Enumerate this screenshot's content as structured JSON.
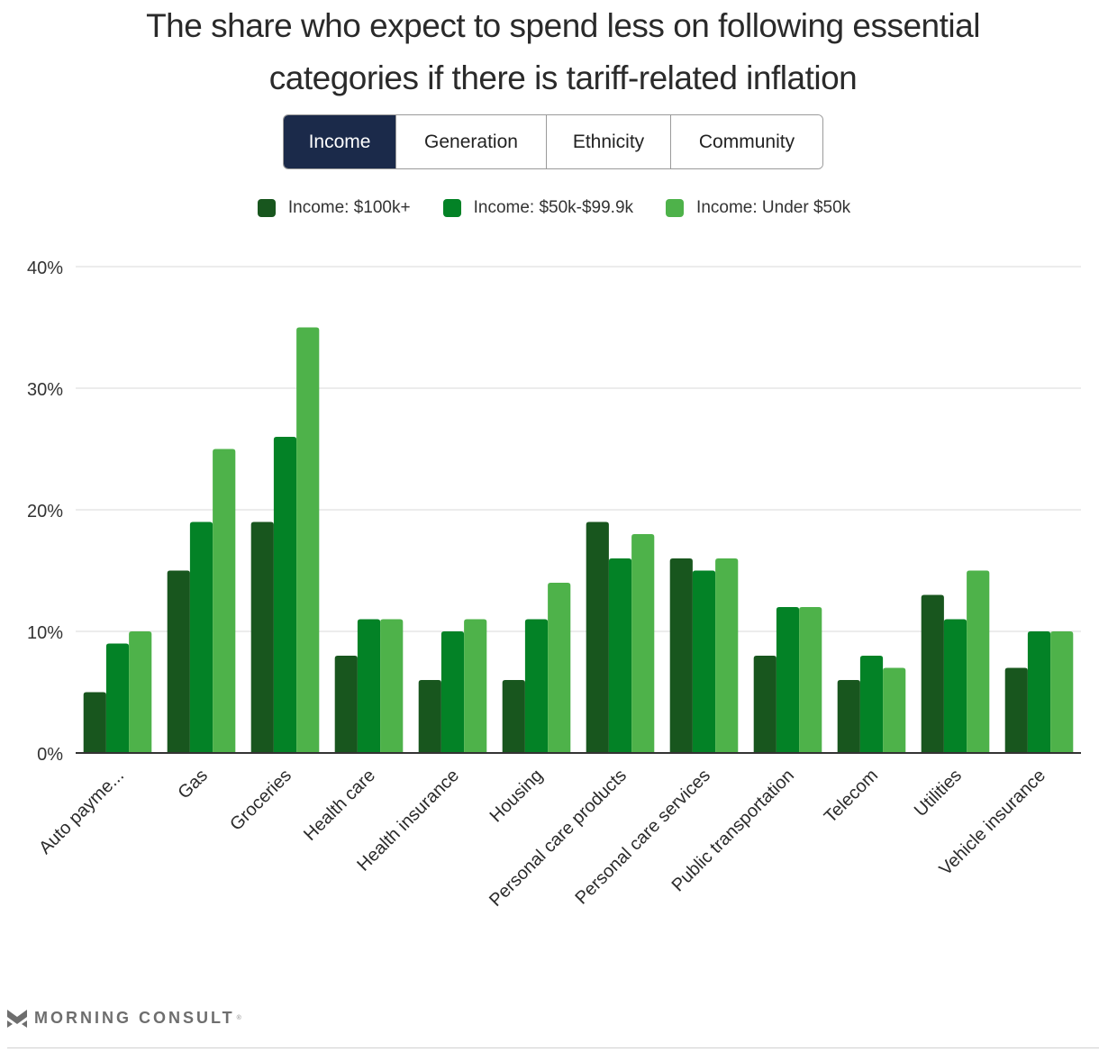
{
  "title_lines": [
    "The share who expect to spend less on following essential",
    "categories if there is tariff-related inflation"
  ],
  "tabs": [
    {
      "label": "Income",
      "active": true
    },
    {
      "label": "Generation",
      "active": false
    },
    {
      "label": "Ethnicity",
      "active": false
    },
    {
      "label": "Community",
      "active": false
    }
  ],
  "footer": {
    "brand": "MORNING CONSULT",
    "trademark": "®"
  },
  "colors": {
    "series": [
      "#18561e",
      "#038226",
      "#4eb24a"
    ],
    "grid": "#e5e5e5",
    "axis": "#333333",
    "tab_active": "#1b2a4a"
  },
  "chart_data": {
    "type": "bar",
    "title": "The share who expect to spend less on following essential categories if there is tariff-related inflation",
    "xlabel": "",
    "ylabel": "",
    "ylim": [
      0,
      40
    ],
    "yticks": [
      0,
      10,
      20,
      30,
      40
    ],
    "ytick_labels": [
      "0%",
      "10%",
      "20%",
      "30%",
      "40%"
    ],
    "grid": true,
    "legend_position": "top-center",
    "categories": [
      "Auto payme...",
      "Gas",
      "Groceries",
      "Health care",
      "Health insurance",
      "Housing",
      "Personal care products",
      "Personal care services",
      "Public transportation",
      "Telecom",
      "Utilities",
      "Vehicle insurance"
    ],
    "series": [
      {
        "name": "Income: $100k+",
        "values": [
          5,
          15,
          19,
          8,
          6,
          6,
          19,
          16,
          8,
          6,
          13,
          7
        ]
      },
      {
        "name": "Income: $50k-$99.9k",
        "values": [
          9,
          19,
          26,
          11,
          10,
          11,
          16,
          15,
          12,
          8,
          11,
          10
        ]
      },
      {
        "name": "Income: Under $50k",
        "values": [
          10,
          25,
          35,
          11,
          11,
          14,
          18,
          16,
          12,
          7,
          15,
          10
        ]
      }
    ]
  }
}
